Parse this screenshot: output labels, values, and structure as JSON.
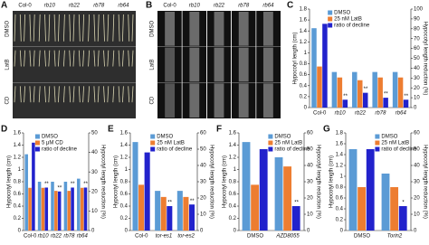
{
  "photo_panels": [
    {
      "panel_label": "A",
      "columns": [
        "Col-0",
        "rb10",
        "rb22",
        "rb78",
        "rb64"
      ],
      "rows": [
        "DMSO",
        "LatB",
        "CD"
      ]
    },
    {
      "panel_label": "B",
      "columns": [
        "Col-0",
        "rb10",
        "rb22",
        "rb78",
        "rb64"
      ],
      "rows": [
        "DMSO",
        "LatB",
        "CD"
      ]
    }
  ],
  "chart_data": [
    {
      "type": "bar",
      "panel_label": "C",
      "categories": [
        "Col-0",
        "rb10",
        "rb22",
        "rb78",
        "rb64"
      ],
      "ylabel": "Hypocotyl length (cm)",
      "y2label": "Hypocotyl length reduction (%)",
      "ylim": [
        0,
        1.8
      ],
      "yticks": [
        0,
        0.2,
        0.4,
        0.6,
        0.8,
        1,
        1.2,
        1.4,
        1.6,
        1.8
      ],
      "y2lim": [
        0,
        100
      ],
      "y2ticks": [
        0,
        10,
        20,
        30,
        40,
        50,
        60,
        70,
        80,
        90,
        100
      ],
      "series": [
        {
          "name": "DMSO",
          "color": "#5b9bd5",
          "values": [
            1.45,
            0.65,
            0.65,
            0.65,
            0.65
          ]
        },
        {
          "name": "25 nM LatB",
          "color": "#ed7d31",
          "values": [
            0.75,
            0.55,
            0.5,
            0.55,
            0.55
          ]
        },
        {
          "name": "ratio of decline",
          "color": "#2222cc",
          "axis": "y2",
          "values": [
            85,
            8,
            15,
            10,
            8
          ]
        }
      ],
      "significance": [
        null,
        "**",
        "**",
        "**",
        "**"
      ]
    },
    {
      "type": "bar",
      "panel_label": "D",
      "categories": [
        "Col-0",
        "rb10",
        "rb22",
        "rb78",
        "rb64"
      ],
      "ylabel": "Hypocotyl length (cm)",
      "y2label": "Hypocotyl length reduction (%)",
      "ylim": [
        0,
        1.6
      ],
      "yticks": [
        0,
        0.2,
        0.4,
        0.6,
        0.8,
        1,
        1.2,
        1.4,
        1.6
      ],
      "y2lim": [
        0,
        50
      ],
      "y2ticks": [
        0,
        10,
        20,
        30,
        40,
        50
      ],
      "series": [
        {
          "name": "DMSO",
          "color": "#5b9bd5",
          "values": [
            1.25,
            0.8,
            0.8,
            0.8,
            0.85
          ]
        },
        {
          "name": "5 μM CD",
          "color": "#ed7d31",
          "values": [
            0.7,
            0.7,
            0.65,
            0.65,
            0.7
          ]
        },
        {
          "name": "ratio of decline",
          "color": "#2222cc",
          "axis": "y2",
          "values": [
            45,
            22,
            20,
            22,
            22
          ]
        }
      ],
      "significance": [
        null,
        "**",
        "**",
        "**",
        "**"
      ]
    },
    {
      "type": "bar",
      "panel_label": "E",
      "categories": [
        "Col-0",
        "tor-es1",
        "tor-es2"
      ],
      "ylabel": "Hypocotyl length (cm)",
      "y2label": "Hypocotyl length reduction (%)",
      "ylim": [
        0,
        1.6
      ],
      "yticks": [
        0,
        0.2,
        0.4,
        0.6,
        0.8,
        1,
        1.2,
        1.4,
        1.6
      ],
      "y2lim": [
        0,
        60
      ],
      "y2ticks": [
        0,
        10,
        20,
        30,
        40,
        50,
        60
      ],
      "series": [
        {
          "name": "DMSO",
          "color": "#5b9bd5",
          "values": [
            1.45,
            0.65,
            0.65
          ]
        },
        {
          "name": "25 nM LatB",
          "color": "#ed7d31",
          "values": [
            0.75,
            0.55,
            0.55
          ]
        },
        {
          "name": "ratio of decline",
          "color": "#2222cc",
          "axis": "y2",
          "values": [
            48,
            15,
            16
          ]
        }
      ],
      "significance": [
        null,
        "**",
        "**"
      ]
    },
    {
      "type": "bar",
      "panel_label": "F",
      "categories": [
        "DMSO",
        "AZD8055"
      ],
      "ylabel": "Hypocotyl length (cm)",
      "y2label": "Hypocotyl length reduction (%)",
      "ylim": [
        0,
        1.6
      ],
      "yticks": [
        0,
        0.2,
        0.4,
        0.6,
        0.8,
        1,
        1.2,
        1.4,
        1.6
      ],
      "y2lim": [
        0,
        60
      ],
      "y2ticks": [
        0,
        10,
        20,
        30,
        40,
        50,
        60
      ],
      "series": [
        {
          "name": "DMSO",
          "color": "#5b9bd5",
          "values": [
            1.45,
            1.2
          ]
        },
        {
          "name": "25 nM LatB",
          "color": "#ed7d31",
          "values": [
            0.75,
            1.05
          ]
        },
        {
          "name": "ratio of decline",
          "color": "#2222cc",
          "axis": "y2",
          "values": [
            50,
            15
          ]
        }
      ],
      "significance": [
        null,
        "**"
      ]
    },
    {
      "type": "bar",
      "panel_label": "G",
      "categories": [
        "DMSO",
        "Torin2"
      ],
      "ylabel": "Hypocotyl length (cm)",
      "y2label": "Hypocotyl length reduction (%)",
      "ylim": [
        0,
        1.8
      ],
      "yticks": [
        0,
        0.2,
        0.4,
        0.6,
        0.8,
        1,
        1.2,
        1.4,
        1.6,
        1.8
      ],
      "y2lim": [
        0,
        60
      ],
      "y2ticks": [
        0,
        10,
        20,
        30,
        40,
        50,
        60
      ],
      "series": [
        {
          "name": "DMSO",
          "color": "#5b9bd5",
          "values": [
            1.5,
            1.05
          ]
        },
        {
          "name": "25 nM LatB",
          "color": "#ed7d31",
          "values": [
            0.8,
            0.8
          ]
        },
        {
          "name": "ratio of decline",
          "color": "#2222cc",
          "axis": "y2",
          "values": [
            50,
            15
          ]
        }
      ],
      "significance": [
        null,
        "*"
      ]
    }
  ]
}
